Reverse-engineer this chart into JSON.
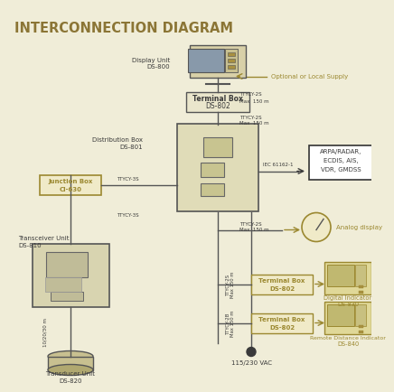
{
  "title": "INTERCONNECTION DIAGRAM",
  "title_color": "#8B7535",
  "bg_color": "#F0EDD8",
  "gold_color": "#9B8830",
  "dark_color": "#3A3A3A",
  "optional_label": "Optional or Local Supply",
  "vac_label": "115/230 VAC",
  "iec_label": "IEC 61162-1",
  "display_label": "Display Unit\nDS-800",
  "tb802_top_label": "Terminal Box\nDS-802",
  "dist_label": "Distribution Box\nDS-801",
  "junction_label": "Junction Box\nCI-630",
  "transceiver_label": "Transceiver Unit\nDS-810",
  "transducer_label": "Transducer Unit\nDS-820",
  "arpa_label": "ARPA/RADAR,\nECDIS, AIS,\nVDR, GMDSS",
  "analog_label": "Analog display",
  "tb802_mid_label": "Terminal Box\nDS-802",
  "di_label": "Digital Indicator\nDS-830",
  "tb802_bot_label": "Terminal Box\nDS-802",
  "ri_label": "Remote Distance Indicator\nDS-840",
  "ttycy2s_a": "TTYCY-2S",
  "ttycy2s_b": "Max  150 m",
  "ttycy3s": "TTYCY-3S",
  "cable10": "10/20/30 m"
}
